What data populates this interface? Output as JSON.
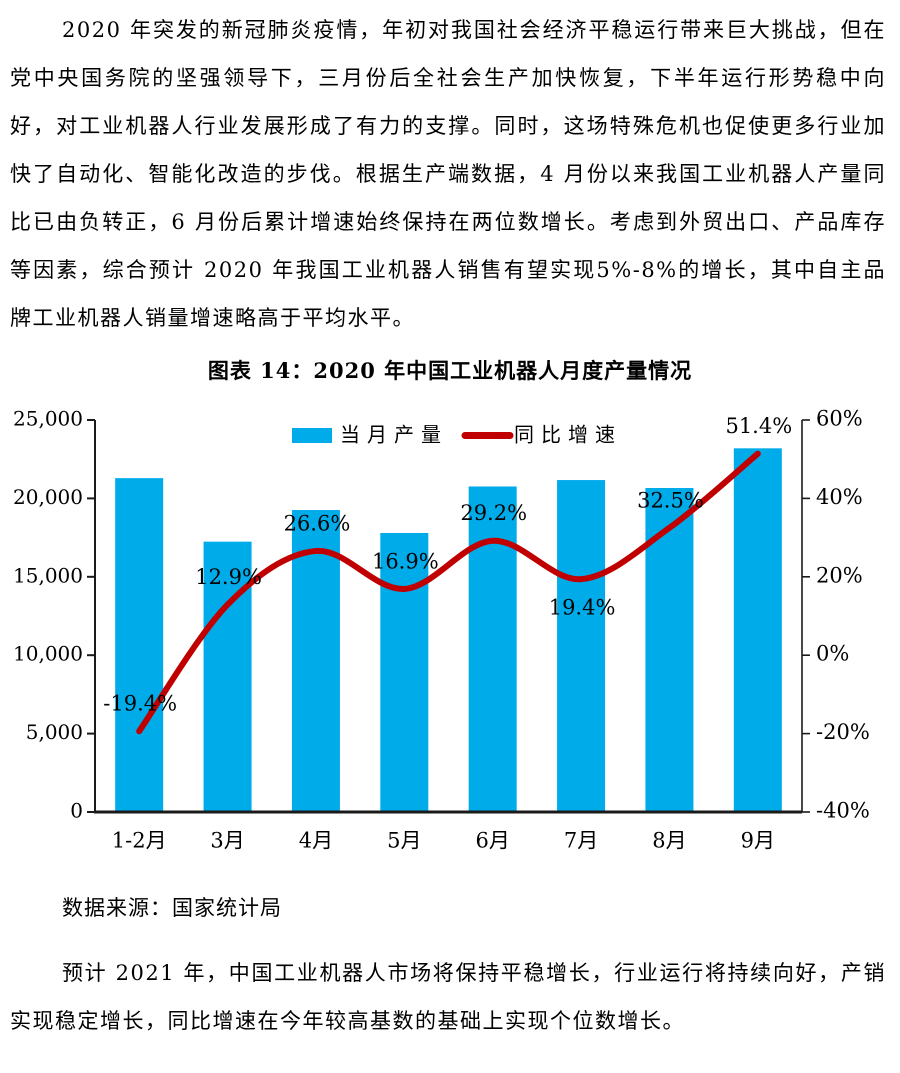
{
  "document": {
    "paragraph1": "2020 年突发的新冠肺炎疫情，年初对我国社会经济平稳运行带来巨大挑战，但在党中央国务院的坚强领导下，三月份后全社会生产加快恢复，下半年运行形势稳中向好，对工业机器人行业发展形成了有力的支撑。同时，这场特殊危机也促使更多行业加快了自动化、智能化改造的步伐。根据生产端数据，4 月份以来我国工业机器人产量同比已由负转正，6 月份后累计增速始终保持在两位数增长。考虑到外贸出口、产品库存等因素，综合预计 2020 年我国工业机器人销售有望实现5%-8%的增长，其中自主品牌工业机器人销量增速略高于平均水平。",
    "chart_caption": "图表 14：2020 年中国工业机器人月度产量情况",
    "source": "数据来源：国家统计局",
    "paragraph2": "预计 2021 年，中国工业机器人市场将保持平稳增长，行业运行将持续向好，产销实现稳定增长，同比增速在今年较高基数的基础上实现个位数增长。"
  },
  "chart_data": {
    "type": "bar",
    "subtype": "combo-bar-line-dual-axis",
    "title": "图表 14：2020 年中国工业机器人月度产量情况",
    "categories": [
      "1-2月",
      "3月",
      "4月",
      "5月",
      "6月",
      "7月",
      "8月",
      "9月"
    ],
    "series": [
      {
        "name": "当月产量",
        "type": "bar",
        "axis": "left",
        "color": "#00ABE9",
        "values": [
          21292,
          17241,
          19257,
          17794,
          20761,
          21170,
          20663,
          23194
        ]
      },
      {
        "name": "同比增速",
        "type": "line",
        "axis": "right",
        "color": "#C00000",
        "values": [
          -19.4,
          12.9,
          26.6,
          16.9,
          29.2,
          19.4,
          32.5,
          51.4
        ],
        "labels": [
          "-19.4%",
          "12.9%",
          "26.6%",
          "16.9%",
          "29.2%",
          "19.4%",
          "32.5%",
          "51.4%"
        ],
        "label_positions": [
          "above",
          "above",
          "above",
          "above",
          "above",
          "below",
          "above",
          "above"
        ]
      }
    ],
    "left_axis": {
      "min": 0,
      "max": 25000,
      "ticks": [
        "25,000",
        "20,000",
        "15,000",
        "10,000",
        "5,000",
        "0"
      ]
    },
    "right_axis": {
      "min": -40,
      "max": 60,
      "ticks": [
        "60%",
        "40%",
        "20%",
        "0%",
        "-20%",
        "-40%"
      ]
    },
    "legend": {
      "position": "top-center",
      "entries": [
        "当月产量",
        "同比增速"
      ]
    },
    "grid": false,
    "ylabel": "",
    "xlabel": ""
  }
}
